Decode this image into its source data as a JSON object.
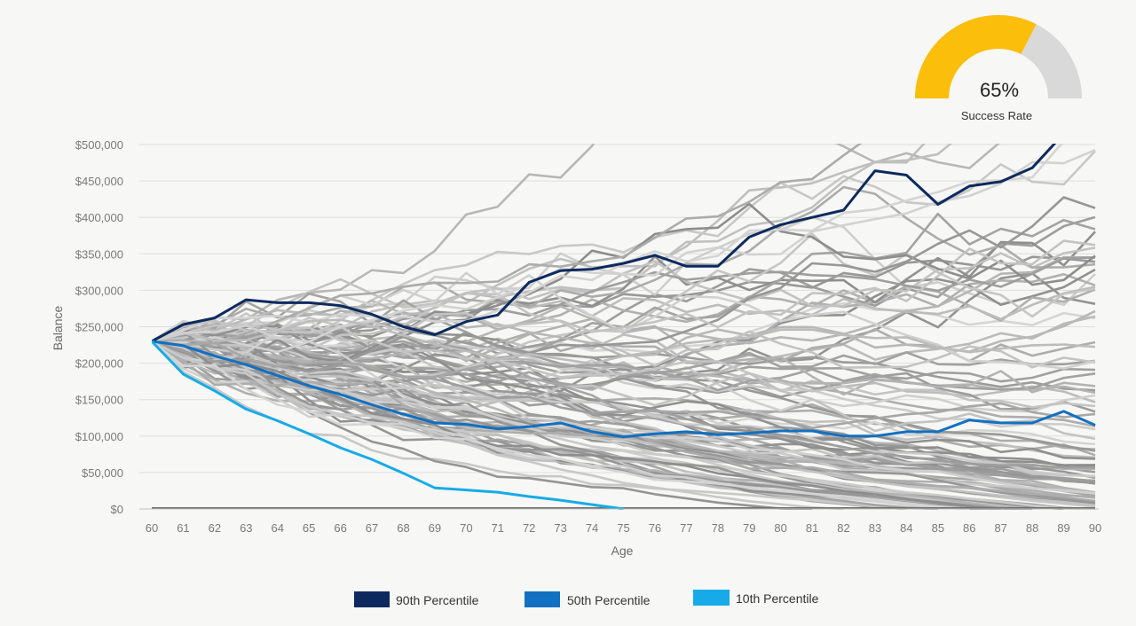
{
  "chart_data": {
    "type": "line",
    "title": "",
    "xlabel": "Age",
    "ylabel": "Balance",
    "x": [
      60,
      61,
      62,
      63,
      64,
      65,
      66,
      67,
      68,
      69,
      70,
      71,
      72,
      73,
      74,
      75,
      76,
      77,
      78,
      79,
      80,
      81,
      82,
      83,
      84,
      85,
      86,
      87,
      88,
      89,
      90
    ],
    "x_tick_labels": [
      "60",
      "61",
      "62",
      "63",
      "64",
      "65",
      "66",
      "67",
      "68",
      "69",
      "70",
      "71",
      "72",
      "73",
      "74",
      "75",
      "76",
      "77",
      "78",
      "79",
      "80",
      "81",
      "82",
      "83",
      "84",
      "85",
      "86",
      "87",
      "88",
      "89",
      "90"
    ],
    "ylim": [
      0,
      500000
    ],
    "y_ticks": [
      0,
      50000,
      100000,
      150000,
      200000,
      250000,
      300000,
      350000,
      400000,
      450000,
      500000
    ],
    "y_tick_labels": [
      "$0",
      "$50,000",
      "$100,000",
      "$150,000",
      "$200,000",
      "$250,000",
      "$300,000",
      "$350,000",
      "$400,000",
      "$450,000",
      "$500,000"
    ],
    "grid": true,
    "legend_position": "bottom-center",
    "series": [
      {
        "name": "90th Percentile",
        "color": "#0d2a5e",
        "values": [
          230000,
          253000,
          262000,
          287000,
          283000,
          283000,
          279000,
          267000,
          250000,
          239000,
          257000,
          266000,
          311000,
          327000,
          329000,
          337000,
          348000,
          333000,
          333000,
          373000,
          390000,
          400000,
          410000,
          464000,
          458000,
          418000,
          443000,
          449000,
          468000,
          515000,
          null
        ]
      },
      {
        "name": "50th Percentile",
        "color": "#1170c1",
        "values": [
          230000,
          224000,
          210000,
          198000,
          183000,
          169000,
          157000,
          143000,
          130000,
          118000,
          116000,
          110000,
          113000,
          118000,
          106000,
          99000,
          103000,
          106000,
          102000,
          104000,
          107000,
          107000,
          100000,
          100000,
          106000,
          106000,
          122000,
          118000,
          118000,
          134000,
          115000
        ]
      },
      {
        "name": "10th Percentile",
        "color": "#16abe8",
        "values": [
          230000,
          185000,
          162000,
          137000,
          121000,
          103000,
          84000,
          68000,
          49000,
          29000,
          26000,
          23000,
          17000,
          12000,
          6000,
          0,
          null,
          null,
          null,
          null,
          null,
          null,
          null,
          null,
          null,
          null,
          null,
          null,
          null,
          null,
          null
        ]
      }
    ],
    "simulation_paths": {
      "count": 100,
      "start_value": 230000,
      "color_range": [
        "#8c8c8c",
        "#d6d6d6"
      ],
      "note": "Monte Carlo simulated balance paths, clipped to the plot area"
    }
  },
  "legend": [
    {
      "label": "90th Percentile",
      "color": "#0d2a5e"
    },
    {
      "label": "50th Percentile",
      "color": "#1170c1"
    },
    {
      "label": "10th Percentile",
      "color": "#16abe8"
    }
  ],
  "gauge": {
    "value": 65,
    "value_text": "65%",
    "label": "Success Rate",
    "fill_color": "#fbbe0a",
    "track_color": "#d9d9d9"
  }
}
